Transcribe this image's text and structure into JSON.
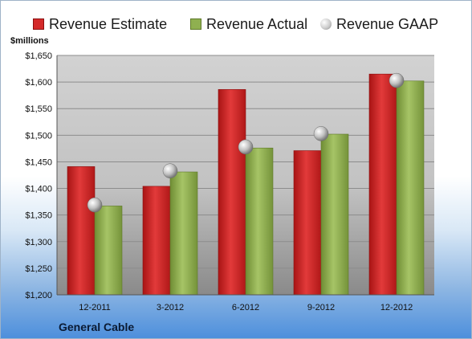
{
  "units_label": "$millions",
  "company": "General Cable",
  "colors": {
    "estimate": "#d42a2a",
    "actual": "#8fb050",
    "gaap": "#c8c8c8"
  },
  "legend": [
    {
      "key": "estimate",
      "label": "Revenue Estimate",
      "icon": "square-swatch-icon"
    },
    {
      "key": "actual",
      "label": "Revenue Actual",
      "icon": "square-swatch-icon"
    },
    {
      "key": "gaap",
      "label": "Revenue GAAP",
      "icon": "sphere-marker-icon"
    }
  ],
  "chart_data": {
    "type": "bar",
    "categories": [
      "12-2011",
      "3-2012",
      "6-2012",
      "9-2012",
      "12-2012"
    ],
    "series": [
      {
        "name": "Revenue Estimate",
        "kind": "bar",
        "values": [
          1441,
          1404,
          1586,
          1471,
          1615
        ]
      },
      {
        "name": "Revenue Actual",
        "kind": "bar",
        "values": [
          1367,
          1431,
          1476,
          1502,
          1602
        ]
      },
      {
        "name": "Revenue GAAP",
        "kind": "marker",
        "values": [
          1369,
          1433,
          1478,
          1503,
          1603
        ]
      }
    ],
    "ylabel": "$millions",
    "ylim": [
      1200,
      1650
    ],
    "yticks": [
      1200,
      1250,
      1300,
      1350,
      1400,
      1450,
      1500,
      1550,
      1600,
      1650
    ],
    "ytick_labels": [
      "$1,200",
      "$1,250",
      "$1,300",
      "$1,350",
      "$1,400",
      "$1,450",
      "$1,500",
      "$1,550",
      "$1,600",
      "$1,650"
    ],
    "grid": true,
    "legend_position": "top"
  }
}
